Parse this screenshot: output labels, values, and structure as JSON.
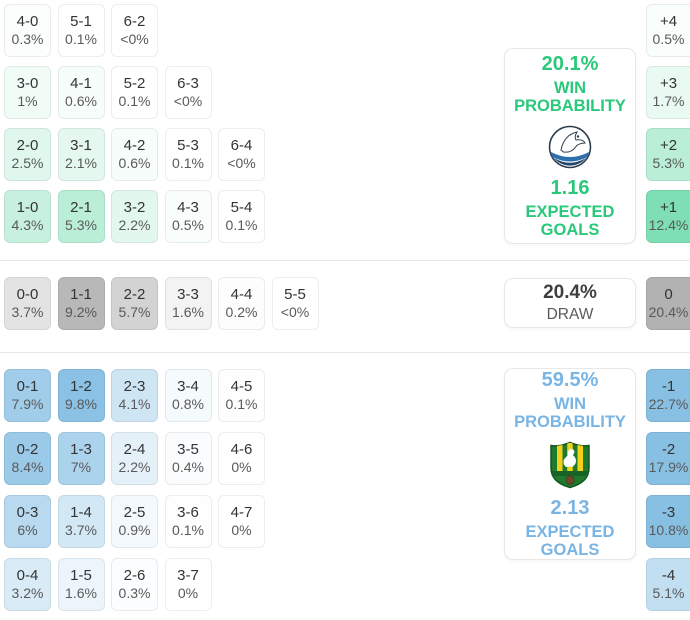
{
  "theme": {
    "home_base_color": "#7ddfb3",
    "draw_base_color": "#b2b2b2",
    "away_base_color": "#88c0e4",
    "home_accent": "#29c87b",
    "away_accent": "#79b5e4",
    "color_scale_max_pct": 10
  },
  "chart_data": {
    "type": "heatmap",
    "description": "Correct score probability matrix with win probabilities and expected goals",
    "home_win_scores": [
      [
        {
          "score": "4-0",
          "pct": "0.3%"
        },
        {
          "score": "5-1",
          "pct": "0.1%"
        },
        {
          "score": "6-2",
          "pct": "<0%"
        }
      ],
      [
        {
          "score": "3-0",
          "pct": "1%"
        },
        {
          "score": "4-1",
          "pct": "0.6%"
        },
        {
          "score": "5-2",
          "pct": "0.1%"
        },
        {
          "score": "6-3",
          "pct": "<0%"
        }
      ],
      [
        {
          "score": "2-0",
          "pct": "2.5%"
        },
        {
          "score": "3-1",
          "pct": "2.1%"
        },
        {
          "score": "4-2",
          "pct": "0.6%"
        },
        {
          "score": "5-3",
          "pct": "0.1%"
        },
        {
          "score": "6-4",
          "pct": "<0%"
        }
      ],
      [
        {
          "score": "1-0",
          "pct": "4.3%"
        },
        {
          "score": "2-1",
          "pct": "5.3%"
        },
        {
          "score": "3-2",
          "pct": "2.2%"
        },
        {
          "score": "4-3",
          "pct": "0.5%"
        },
        {
          "score": "5-4",
          "pct": "0.1%"
        }
      ]
    ],
    "draw_scores": [
      [
        {
          "score": "0-0",
          "pct": "3.7%"
        },
        {
          "score": "1-1",
          "pct": "9.2%"
        },
        {
          "score": "2-2",
          "pct": "5.7%"
        },
        {
          "score": "3-3",
          "pct": "1.6%"
        },
        {
          "score": "4-4",
          "pct": "0.2%"
        },
        {
          "score": "5-5",
          "pct": "<0%"
        }
      ]
    ],
    "away_win_scores": [
      [
        {
          "score": "0-1",
          "pct": "7.9%"
        },
        {
          "score": "1-2",
          "pct": "9.8%"
        },
        {
          "score": "2-3",
          "pct": "4.1%"
        },
        {
          "score": "3-4",
          "pct": "0.8%"
        },
        {
          "score": "4-5",
          "pct": "0.1%"
        }
      ],
      [
        {
          "score": "0-2",
          "pct": "8.4%"
        },
        {
          "score": "1-3",
          "pct": "7%"
        },
        {
          "score": "2-4",
          "pct": "2.2%"
        },
        {
          "score": "3-5",
          "pct": "0.4%"
        },
        {
          "score": "4-6",
          "pct": "0%"
        }
      ],
      [
        {
          "score": "0-3",
          "pct": "6%"
        },
        {
          "score": "1-4",
          "pct": "3.7%"
        },
        {
          "score": "2-5",
          "pct": "0.9%"
        },
        {
          "score": "3-6",
          "pct": "0.1%"
        },
        {
          "score": "4-7",
          "pct": "0%"
        }
      ],
      [
        {
          "score": "0-4",
          "pct": "3.2%"
        },
        {
          "score": "1-5",
          "pct": "1.6%"
        },
        {
          "score": "2-6",
          "pct": "0.3%"
        },
        {
          "score": "3-7",
          "pct": "0%"
        }
      ]
    ],
    "goal_difference": {
      "home": [
        {
          "diff": "+4",
          "pct": "0.5%"
        },
        {
          "diff": "+3",
          "pct": "1.7%"
        },
        {
          "diff": "+2",
          "pct": "5.3%"
        },
        {
          "diff": "+1",
          "pct": "12.4%"
        }
      ],
      "draw": [
        {
          "diff": "0",
          "pct": "20.4%"
        }
      ],
      "away": [
        {
          "diff": "-1",
          "pct": "22.7%"
        },
        {
          "diff": "-2",
          "pct": "17.9%"
        },
        {
          "diff": "-3",
          "pct": "10.8%"
        },
        {
          "diff": "-4",
          "pct": "5.1%"
        }
      ]
    }
  },
  "cards": {
    "home": {
      "win_probability": "20.1%",
      "win_label": "WIN PROBABILITY",
      "expected_goals": "1.16",
      "goals_label": "EXPECTED GOALS"
    },
    "draw": {
      "probability": "20.4%",
      "label": "DRAW"
    },
    "away": {
      "win_probability": "59.5%",
      "win_label": "WIN PROBABILITY",
      "expected_goals": "2.13",
      "goals_label": "EXPECTED GOALS"
    }
  }
}
